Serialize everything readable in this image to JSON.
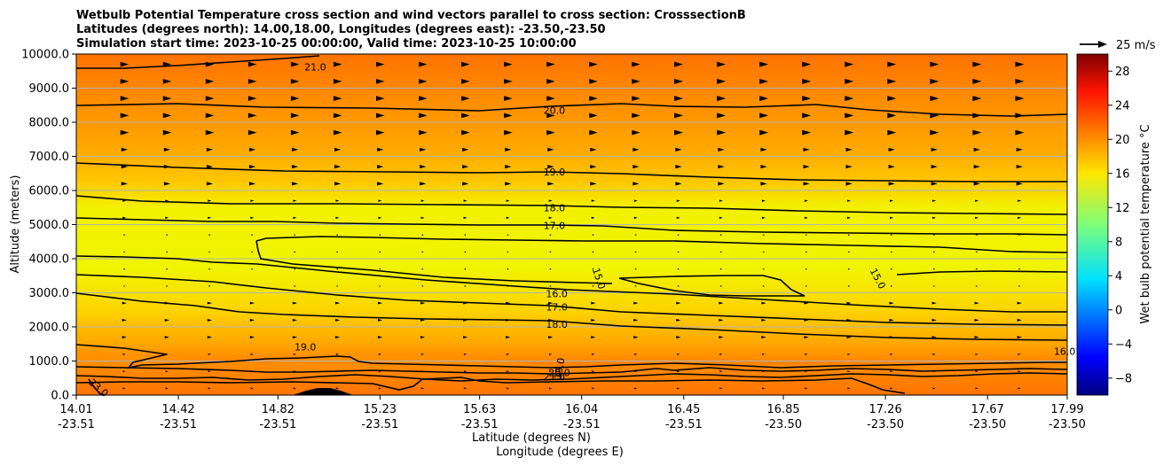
{
  "chart_data": {
    "type": "contour",
    "title_lines": [
      "Wetbulb Potential Temperature cross section and wind vectors parallel to cross section: CrosssectionB",
      "Latitudes (degrees north): 14.00,18.00, Longitudes (degrees east): -23.50,-23.50",
      "Simulation start time: 2023-10-25 00:00:00, Valid time: 2023-10-25 10:00:00"
    ],
    "xlabel_lat": "Latitude (degrees N)",
    "xlabel_lon": "Longitude (degrees E)",
    "ylabel": "Altitude (meters)",
    "ylim": [
      0,
      10000
    ],
    "y_ticks": [
      "0.0",
      "1000.0",
      "2000.0",
      "3000.0",
      "4000.0",
      "5000.0",
      "6000.0",
      "7000.0",
      "8000.0",
      "9000.0",
      "10000.0"
    ],
    "x_ticks": [
      {
        "lat": "14.01",
        "lon": "-23.51"
      },
      {
        "lat": "14.42",
        "lon": "-23.51"
      },
      {
        "lat": "14.82",
        "lon": "-23.51"
      },
      {
        "lat": "15.23",
        "lon": "-23.51"
      },
      {
        "lat": "15.63",
        "lon": "-23.51"
      },
      {
        "lat": "16.04",
        "lon": "-23.51"
      },
      {
        "lat": "16.45",
        "lon": "-23.51"
      },
      {
        "lat": "16.85",
        "lon": "-23.50"
      },
      {
        "lat": "17.26",
        "lon": "-23.50"
      },
      {
        "lat": "17.67",
        "lon": "-23.50"
      },
      {
        "lat": "17.99",
        "lon": "-23.50"
      }
    ],
    "colorbar": {
      "label": "Wet bulb potential temperature °C",
      "range": [
        -10,
        30
      ],
      "ticks": [
        "−8",
        "−4",
        "0",
        "4",
        "8",
        "12",
        "16",
        "20",
        "24",
        "28"
      ],
      "colormap": "jet"
    },
    "quiver_key": "25 m/s",
    "contour_labels": [
      {
        "text": "21.0",
        "lat": 14.97,
        "alt": 9620
      },
      {
        "text": "20.0",
        "lat": 15.93,
        "alt": 8350
      },
      {
        "text": "19.0",
        "lat": 15.93,
        "alt": 6550
      },
      {
        "text": "18.0",
        "lat": 15.93,
        "alt": 5500
      },
      {
        "text": "17.0",
        "lat": 15.93,
        "alt": 4980
      },
      {
        "text": "16.0",
        "lat": 15.94,
        "alt": 2980
      },
      {
        "text": "17.0",
        "lat": 15.94,
        "alt": 2580
      },
      {
        "text": "18.0",
        "lat": 15.94,
        "alt": 2080
      },
      {
        "text": "19.0",
        "lat": 14.93,
        "alt": 1410
      },
      {
        "text": "15.0",
        "lat": 16.11,
        "alt": 3420
      },
      {
        "text": "15.0",
        "lat": 17.23,
        "alt": 3420
      },
      {
        "text": "16.0",
        "lat": 17.98,
        "alt": 1280
      },
      {
        "text": "19.0",
        "lat": 15.95,
        "alt": 780
      },
      {
        "text": "20.0",
        "lat": 15.95,
        "alt": 660
      },
      {
        "text": "21.0",
        "lat": 15.93,
        "alt": 540
      },
      {
        "text": "23.0",
        "lat": 14.1,
        "alt": 220
      }
    ]
  }
}
